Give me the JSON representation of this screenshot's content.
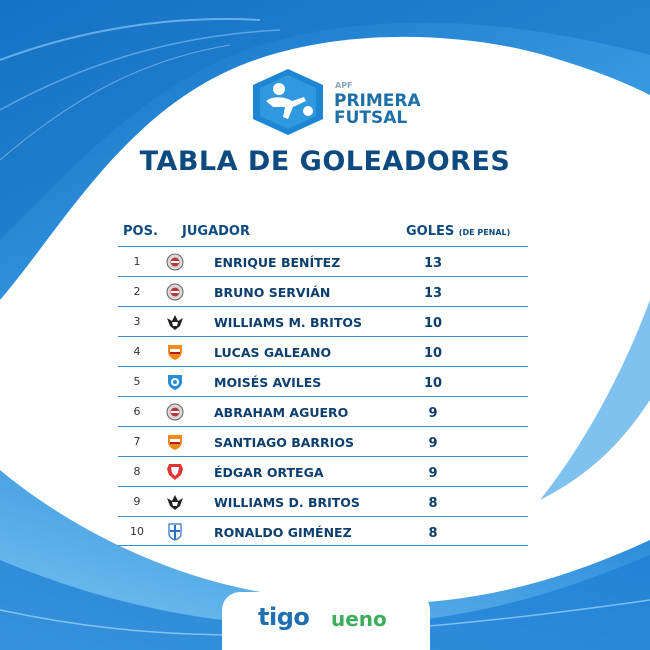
{
  "colors": {
    "primary": "#0c4a80",
    "accent": "#1d86d4",
    "tigo": "#1f6fb3",
    "ueno": "#3cae5b"
  },
  "brand": {
    "apf": "APF",
    "line1": "PRIMERA",
    "line2": "FUTSAL"
  },
  "title": "TABLA DE GOLEADORES",
  "headers": {
    "pos": "POS.",
    "player": "JUGADOR",
    "goals": "GOLES",
    "goals_note": "(DE PENAL)"
  },
  "rows": [
    {
      "pos": "1",
      "name": "ENRIQUE BENÍTEZ",
      "goals": "13",
      "crest": "round-grey-crest-icon"
    },
    {
      "pos": "2",
      "name": "BRUNO SERVIÁN",
      "goals": "13",
      "crest": "round-grey-crest-icon"
    },
    {
      "pos": "3",
      "name": "WILLIAMS M. BRITOS",
      "goals": "10",
      "crest": "black-eagle-crest-icon"
    },
    {
      "pos": "4",
      "name": "LUCAS GALEANO",
      "goals": "10",
      "crest": "orange-shield-crest-icon"
    },
    {
      "pos": "5",
      "name": "MOISÉS AVILES",
      "goals": "10",
      "crest": "blue-shield-crest-icon"
    },
    {
      "pos": "6",
      "name": "ABRAHAM AGUERO",
      "goals": "9",
      "crest": "round-grey-crest-icon"
    },
    {
      "pos": "7",
      "name": "SANTIAGO BARRIOS",
      "goals": "9",
      "crest": "orange-shield-crest-icon"
    },
    {
      "pos": "8",
      "name": "ÉDGAR ORTEGA",
      "goals": "9",
      "crest": "red-shield-crest-icon"
    },
    {
      "pos": "9",
      "name": "WILLIAMS D. BRITOS",
      "goals": "8",
      "crest": "black-eagle-crest-icon"
    },
    {
      "pos": "10",
      "name": "RONALDO GIMÉNEZ",
      "goals": "8",
      "crest": "blue-white-shield-crest-icon"
    }
  ],
  "sponsors": {
    "tigo": "tigo",
    "ueno": "ueno"
  }
}
